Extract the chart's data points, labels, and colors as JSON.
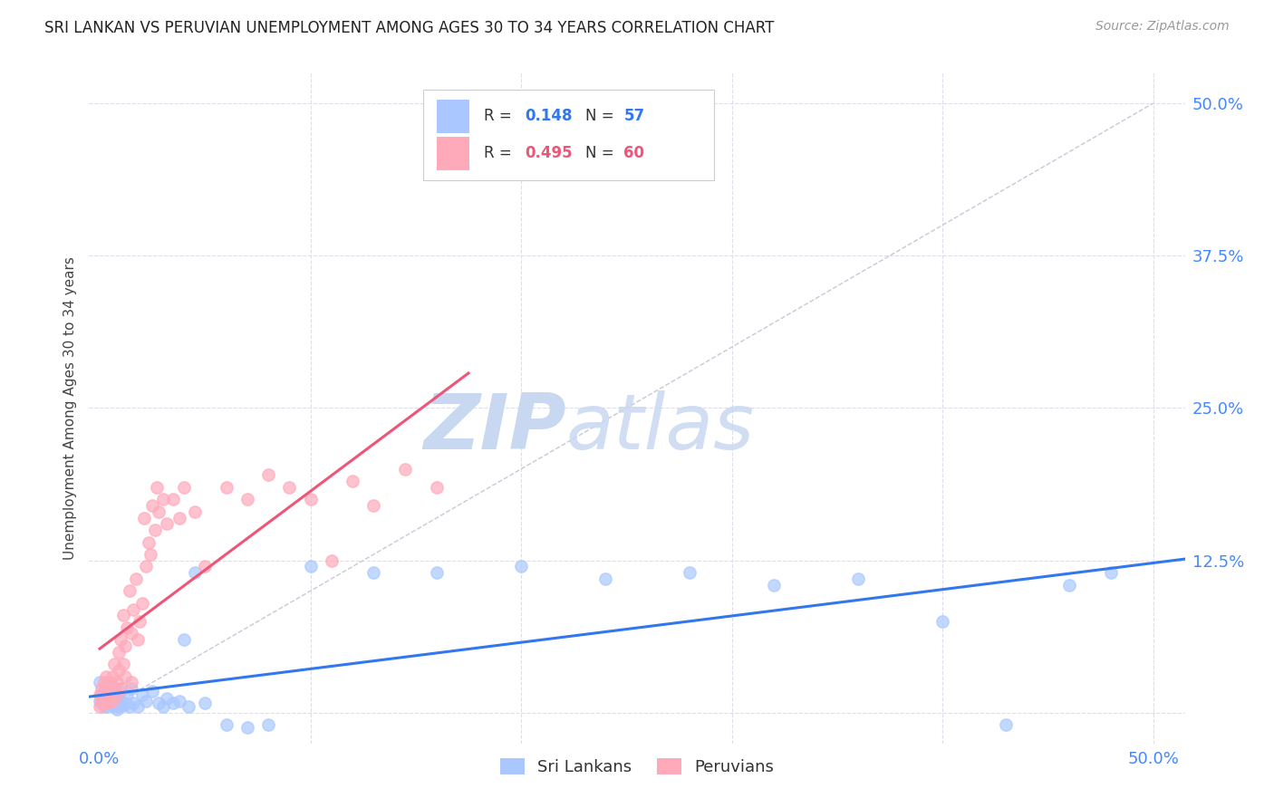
{
  "title": "SRI LANKAN VS PERUVIAN UNEMPLOYMENT AMONG AGES 30 TO 34 YEARS CORRELATION CHART",
  "source": "Source: ZipAtlas.com",
  "ylabel": "Unemployment Among Ages 30 to 34 years",
  "x_ticks": [
    0.0,
    0.1,
    0.2,
    0.3,
    0.4,
    0.5
  ],
  "x_tick_labels": [
    "0.0%",
    "",
    "",
    "",
    "",
    "50.0%"
  ],
  "y_ticks": [
    0.0,
    0.125,
    0.25,
    0.375,
    0.5
  ],
  "y_tick_labels_right": [
    "",
    "12.5%",
    "25.0%",
    "37.5%",
    "50.0%"
  ],
  "xlim": [
    -0.005,
    0.515
  ],
  "ylim": [
    -0.025,
    0.525
  ],
  "sri_lanka_color": "#aac8ff",
  "peru_color": "#ffaabb",
  "sri_lanka_line_color": "#3377ee",
  "peru_line_color": "#ee5577",
  "dashed_line_color": "#c8c8d8",
  "legend_border_color": "#cccccc",
  "grid_color": "#ddddee",
  "background_color": "#ffffff",
  "title_color": "#222222",
  "source_color": "#999999",
  "axis_label_color": "#444444",
  "tick_color_right": "#4488ff",
  "tick_color_bottom": "#4488ff",
  "sri_lanka_x": [
    0.0,
    0.0,
    0.001,
    0.001,
    0.002,
    0.002,
    0.003,
    0.003,
    0.003,
    0.004,
    0.004,
    0.005,
    0.005,
    0.006,
    0.006,
    0.007,
    0.007,
    0.008,
    0.008,
    0.009,
    0.009,
    0.01,
    0.01,
    0.011,
    0.012,
    0.013,
    0.014,
    0.015,
    0.016,
    0.018,
    0.02,
    0.022,
    0.025,
    0.028,
    0.03,
    0.032,
    0.035,
    0.038,
    0.04,
    0.042,
    0.045,
    0.05,
    0.06,
    0.07,
    0.08,
    0.1,
    0.13,
    0.16,
    0.2,
    0.24,
    0.28,
    0.32,
    0.36,
    0.4,
    0.43,
    0.46,
    0.48
  ],
  "sri_lanka_y": [
    0.025,
    0.01,
    0.015,
    0.008,
    0.012,
    0.005,
    0.018,
    0.008,
    0.02,
    0.012,
    0.005,
    0.015,
    0.008,
    0.01,
    0.02,
    0.006,
    0.015,
    0.008,
    0.003,
    0.012,
    0.005,
    0.01,
    0.018,
    0.006,
    0.008,
    0.015,
    0.005,
    0.02,
    0.008,
    0.005,
    0.015,
    0.01,
    0.018,
    0.008,
    0.005,
    0.012,
    0.008,
    0.01,
    0.06,
    0.005,
    0.115,
    0.008,
    -0.01,
    -0.012,
    -0.01,
    0.12,
    0.115,
    0.115,
    0.12,
    0.11,
    0.115,
    0.105,
    0.11,
    0.075,
    -0.01,
    0.105,
    0.115
  ],
  "peru_x": [
    0.0,
    0.0,
    0.001,
    0.001,
    0.002,
    0.002,
    0.003,
    0.003,
    0.004,
    0.004,
    0.005,
    0.005,
    0.006,
    0.006,
    0.007,
    0.007,
    0.008,
    0.008,
    0.009,
    0.009,
    0.01,
    0.01,
    0.011,
    0.011,
    0.012,
    0.012,
    0.013,
    0.014,
    0.015,
    0.015,
    0.016,
    0.017,
    0.018,
    0.019,
    0.02,
    0.021,
    0.022,
    0.023,
    0.024,
    0.025,
    0.026,
    0.027,
    0.028,
    0.03,
    0.032,
    0.035,
    0.038,
    0.04,
    0.045,
    0.05,
    0.06,
    0.07,
    0.08,
    0.09,
    0.1,
    0.11,
    0.12,
    0.13,
    0.145,
    0.16
  ],
  "peru_y": [
    0.015,
    0.005,
    0.02,
    0.008,
    0.015,
    0.025,
    0.01,
    0.03,
    0.02,
    0.008,
    0.025,
    0.015,
    0.03,
    0.01,
    0.02,
    0.04,
    0.025,
    0.015,
    0.035,
    0.05,
    0.02,
    0.06,
    0.04,
    0.08,
    0.055,
    0.03,
    0.07,
    0.1,
    0.065,
    0.025,
    0.085,
    0.11,
    0.06,
    0.075,
    0.09,
    0.16,
    0.12,
    0.14,
    0.13,
    0.17,
    0.15,
    0.185,
    0.165,
    0.175,
    0.155,
    0.175,
    0.16,
    0.185,
    0.165,
    0.12,
    0.185,
    0.175,
    0.195,
    0.185,
    0.175,
    0.125,
    0.19,
    0.17,
    0.2,
    0.185
  ]
}
